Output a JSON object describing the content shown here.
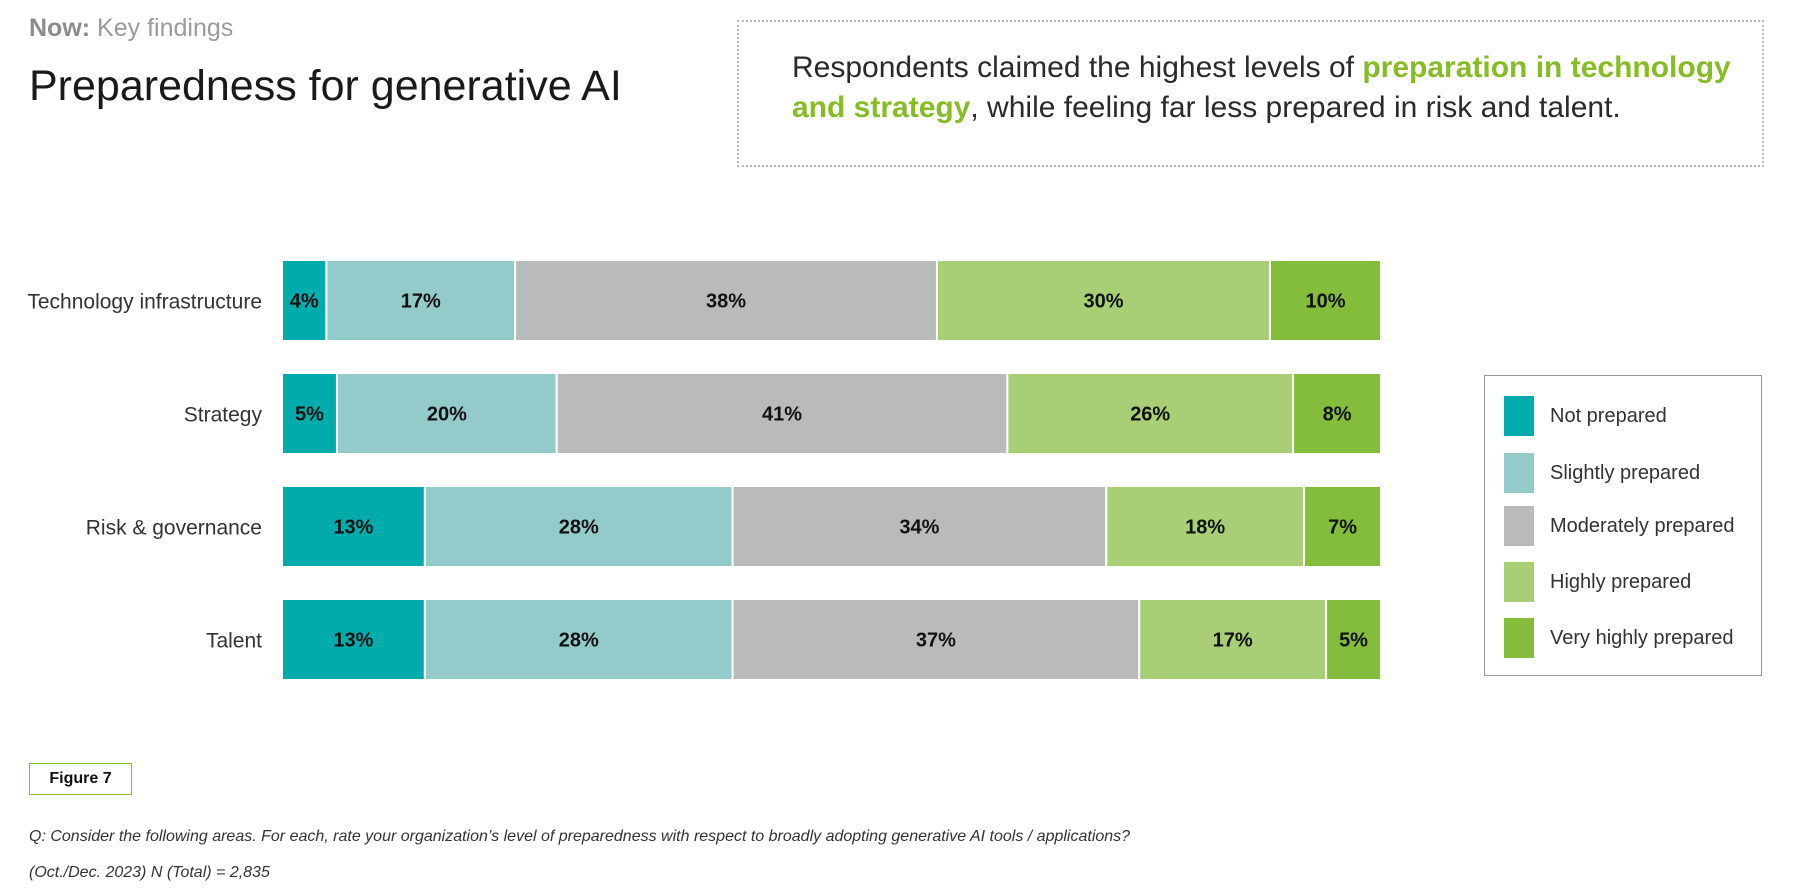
{
  "header": {
    "kicker_bold": "Now:",
    "kicker_rest": " Key findings",
    "title": "Preparedness for generative AI"
  },
  "callout": {
    "before": "Respondents claimed the highest levels of ",
    "highlight": "preparation in technology and strategy",
    "after": ", while feeling far less prepared in risk and talent."
  },
  "chart_data": {
    "type": "bar",
    "orientation": "horizontal",
    "stacked": true,
    "title": "Preparedness for generative AI",
    "categories": [
      "Technology infrastructure",
      "Strategy",
      "Risk & governance",
      "Talent"
    ],
    "series": [
      {
        "name": "Not prepared",
        "color": "#00abab",
        "values": [
          4,
          5,
          13,
          13
        ],
        "labels": [
          "4%",
          "5%",
          "13%",
          "13%"
        ]
      },
      {
        "name": "Slightly prepared",
        "color": "#93cbcb",
        "values": [
          17,
          20,
          28,
          28
        ],
        "labels": [
          "17%",
          "20%",
          "28%",
          "28%"
        ]
      },
      {
        "name": "Moderately prepared",
        "color": "#b9baba",
        "values": [
          38,
          41,
          34,
          37
        ],
        "labels": [
          "38%",
          "41%",
          "34%",
          "37%"
        ]
      },
      {
        "name": "Highly prepared",
        "color": "#a8cf76",
        "values": [
          30,
          26,
          18,
          17
        ],
        "labels": [
          "30%",
          "26%",
          "18%",
          "17%"
        ]
      },
      {
        "name": "Very highly prepared",
        "color": "#84bd3b",
        "values": [
          10,
          8,
          7,
          5
        ],
        "labels": [
          "10%",
          "8%",
          "7%",
          "5%"
        ]
      }
    ],
    "legend_position": "right",
    "grid": false
  },
  "figure": {
    "label": "Figure 7",
    "question": "Q: Consider the following areas. For each, rate your organization’s level of preparedness with respect to broadly adopting generative AI tools / applications?",
    "sample": "(Oct./Dec. 2023) N (Total) = 2,835"
  }
}
